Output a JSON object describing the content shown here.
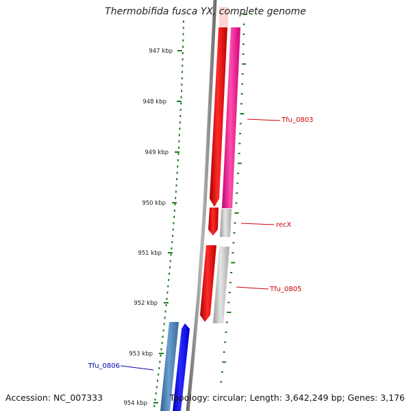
{
  "title": "Thermobifida fusca YX, complete genome",
  "footer": {
    "accession": "Accession: NC_007333",
    "topology": "Topology: circular; Length: 3,642,249 bp; Genes: 3,176"
  },
  "ruler": {
    "ticks": [
      {
        "label": "947 kbp"
      },
      {
        "label": "948 kbp"
      },
      {
        "label": "949 kbp"
      },
      {
        "label": "950 kbp"
      },
      {
        "label": "951 kbp"
      },
      {
        "label": "952 kbp"
      },
      {
        "label": "953 kbp"
      },
      {
        "label": "954 kbp"
      }
    ]
  },
  "genes": [
    {
      "label": "Tfu_0803",
      "color": "#cc0000"
    },
    {
      "label": "recX",
      "color": "#cc0000"
    },
    {
      "label": "Tfu_0805",
      "color": "#cc0000"
    },
    {
      "label": "Tfu_0806",
      "color": "#0000aa"
    }
  ],
  "colors": {
    "tick_green": "#1a7a1a",
    "forward_red": "#ff0000",
    "pink": "#ff3399",
    "grey": "#c8c8c8",
    "blue": "#0000ff",
    "steel_blue": "#4a7fb5"
  }
}
